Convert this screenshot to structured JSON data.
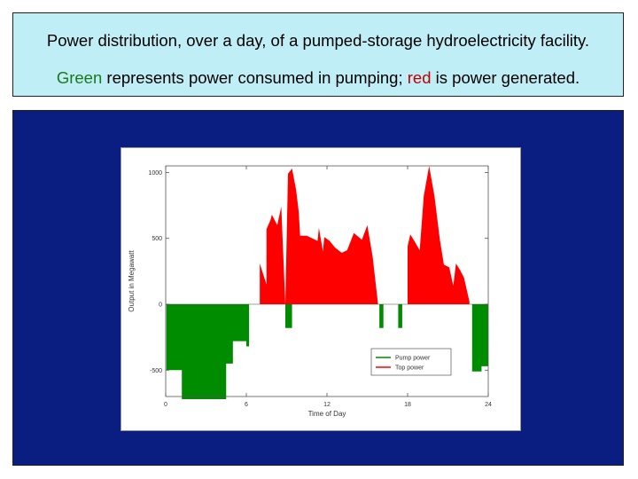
{
  "caption": {
    "line1": "Power distribution, over a day, of a pumped-storage hydroelectricity facility.",
    "line2_word1": "Green",
    "line2_mid": " represents power consumed in pumping; ",
    "line2_word2": "red",
    "line2_end": " is power generated."
  },
  "colors": {
    "caption_bg": "#bfeef6",
    "panel_bg": "#0a1e82",
    "pump": "#008c00",
    "generation": "#ff0000",
    "green_text": "#1a7a1a",
    "red_text": "#c00000"
  },
  "chart_data": {
    "type": "area",
    "xlabel": "Time of Day",
    "ylabel": "Output in Megawatt",
    "xlim": [
      0,
      24
    ],
    "ylim": [
      -700,
      1050
    ],
    "xticks": [
      0,
      6,
      12,
      18,
      24
    ],
    "yticks": [
      -500,
      0,
      500,
      1000
    ],
    "grid": false,
    "legend": "bottom-right",
    "series": [
      {
        "name": "Pump power",
        "color": "#008c00",
        "x": [
          0,
          0.05,
          0.05,
          1.2,
          1.2,
          4.5,
          4.5,
          5.0,
          5.0,
          6.0,
          6.0,
          6.2,
          6.2,
          8.9,
          8.9,
          9.4,
          9.4,
          9.5,
          9.5,
          15.9,
          15.9,
          16.2,
          16.2,
          17.3,
          17.3,
          17.6,
          17.6,
          22.8,
          22.8,
          23.5,
          23.5,
          24.0
        ],
        "values": [
          0,
          0,
          -500,
          -500,
          -720,
          -720,
          -450,
          -450,
          -280,
          -280,
          -320,
          -320,
          0,
          0,
          -180,
          -180,
          0,
          0,
          0,
          0,
          -180,
          -180,
          0,
          0,
          -180,
          -180,
          0,
          0,
          -510,
          -510,
          -470,
          -470
        ]
      },
      {
        "name": "Top power",
        "color": "#ff0000",
        "x": [
          7.0,
          7.0,
          7.5,
          7.5,
          7.8,
          7.9,
          8.3,
          8.6,
          8.9,
          9.1,
          9.4,
          9.7,
          9.9,
          10.0,
          10.5,
          11.3,
          11.4,
          11.7,
          11.8,
          12.2,
          12.6,
          13.1,
          13.5,
          14.0,
          14.6,
          15.0,
          15.4,
          15.8,
          15.8,
          18.0,
          18.0,
          18.2,
          18.5,
          18.9,
          19.2,
          19.6,
          20.0,
          20.4,
          20.7,
          21.1,
          21.4,
          21.6,
          21.9,
          22.2,
          22.4,
          22.6,
          22.6
        ],
        "values": [
          0,
          310,
          150,
          570,
          640,
          680,
          600,
          740,
          0,
          990,
          1030,
          870,
          700,
          520,
          520,
          480,
          580,
          400,
          510,
          480,
          430,
          390,
          410,
          540,
          490,
          600,
          360,
          0,
          0,
          0,
          440,
          530,
          480,
          410,
          820,
          1050,
          820,
          490,
          300,
          280,
          140,
          310,
          260,
          200,
          110,
          20,
          0
        ]
      }
    ]
  }
}
